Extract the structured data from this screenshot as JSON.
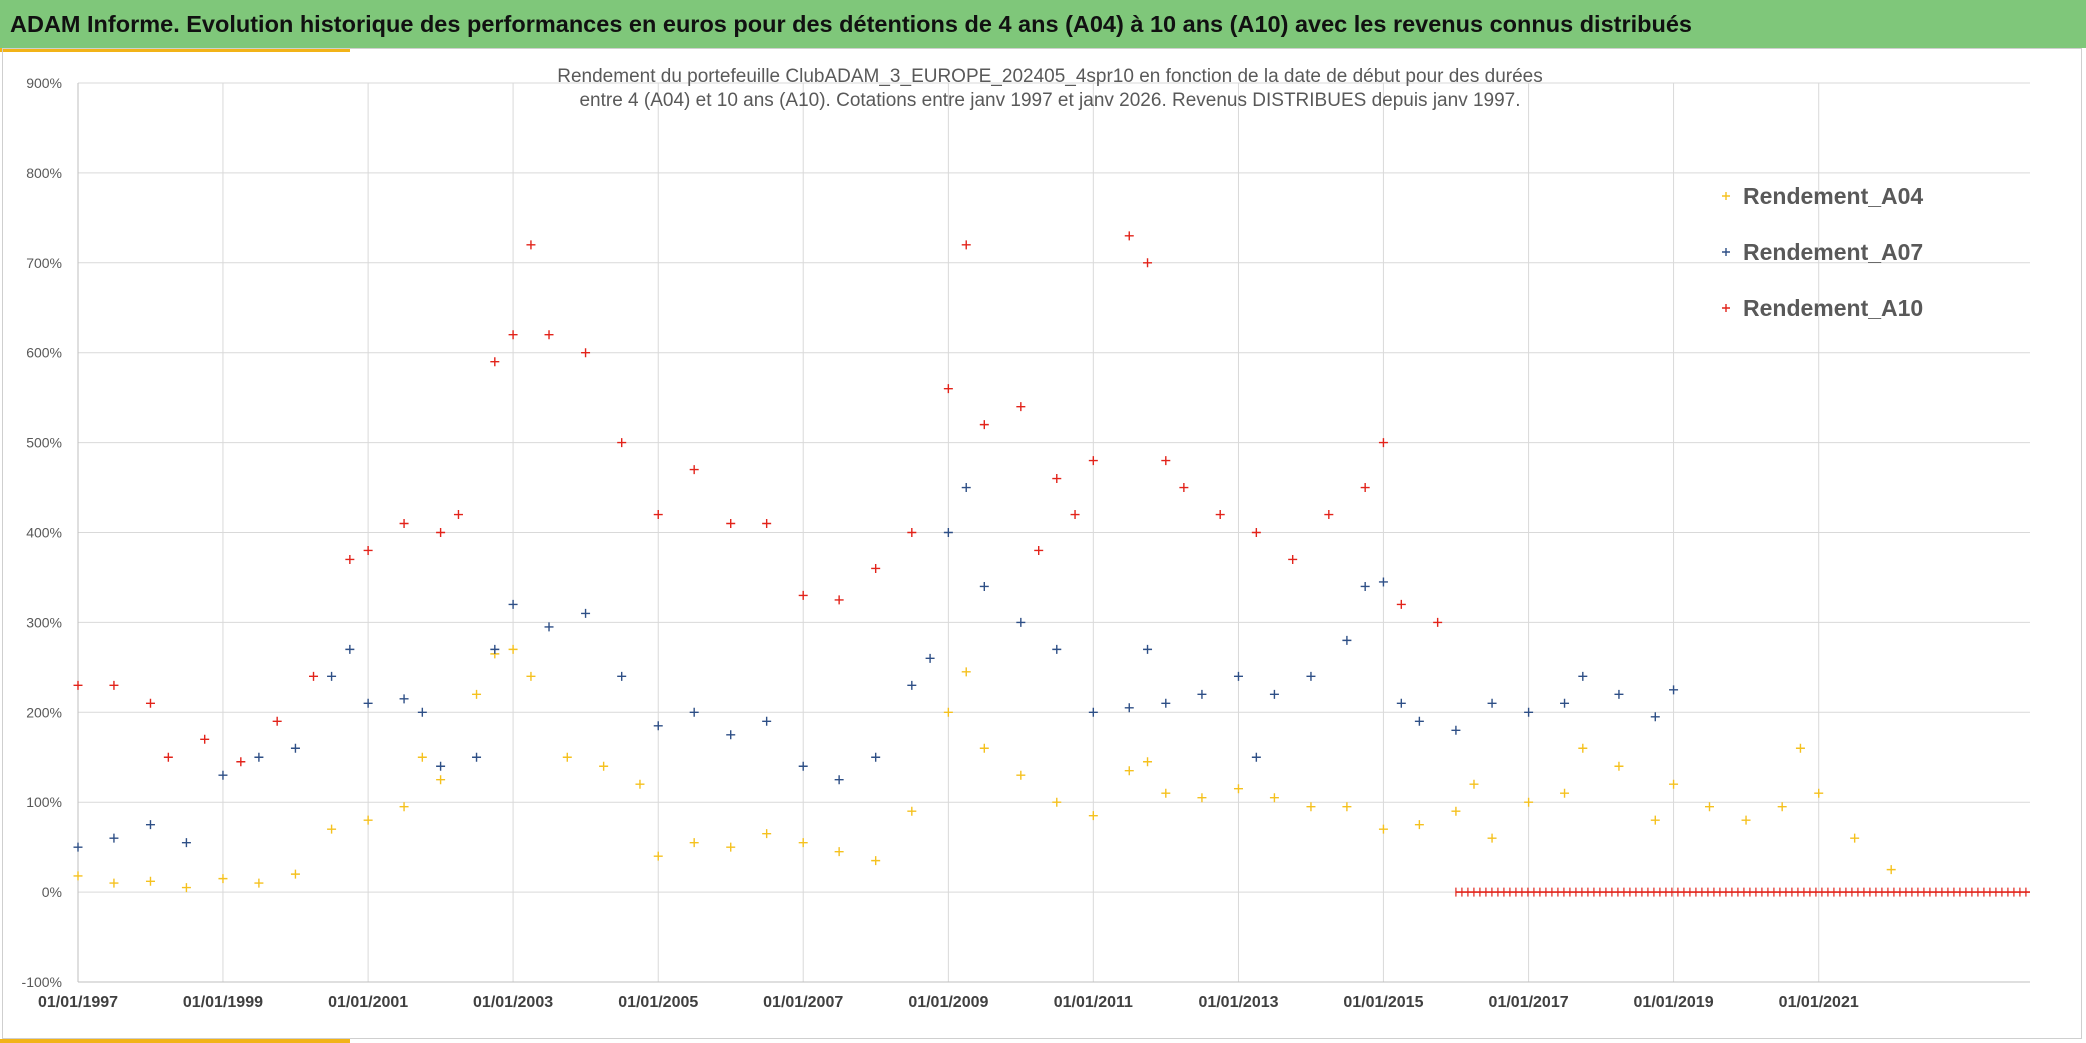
{
  "header": {
    "title": "ADAM Informe. Evolution historique des performances en euros pour des détentions de 4 ans (A04) à 10 ans (A10) avec les revenus connus distribués"
  },
  "chart_data": {
    "type": "scatter",
    "title_line1": "Rendement du portefeuille ClubADAM_3_EUROPE_202405_4spr10  en fonction de la date de début pour des durées",
    "title_line2": "entre 4 (A04) et 10 ans (A10). Cotations entre janv 1997 et janv 2026. Revenus DISTRIBUES depuis janv 1997.",
    "xlim": [
      "1997-01-01",
      "2023-12-01"
    ],
    "ylim": [
      -100,
      900
    ],
    "y_ticks": [
      -100,
      0,
      100,
      200,
      300,
      400,
      500,
      600,
      700,
      800,
      900
    ],
    "y_tick_labels": [
      "-100%",
      "0%",
      "100%",
      "200%",
      "300%",
      "400%",
      "500%",
      "600%",
      "700%",
      "800%",
      "900%"
    ],
    "x_ticks": [
      "1997-01-01",
      "1999-01-01",
      "2001-01-01",
      "2003-01-01",
      "2005-01-01",
      "2007-01-01",
      "2009-01-01",
      "2011-01-01",
      "2013-01-01",
      "2015-01-01",
      "2017-01-01",
      "2019-01-01",
      "2021-01-01"
    ],
    "x_tick_labels": [
      "01/01/1997",
      "01/01/1999",
      "01/01/2001",
      "01/01/2003",
      "01/01/2005",
      "01/01/2007",
      "01/01/2009",
      "01/01/2011",
      "01/01/2013",
      "01/01/2015",
      "01/01/2017",
      "01/01/2019",
      "01/01/2021"
    ],
    "grid": true,
    "legend_position": "top-right",
    "marker": "+",
    "series": [
      {
        "name": "Rendement_A04",
        "color": "#f5c11e",
        "x": [
          "1997-01-01",
          "1997-07-01",
          "1998-01-01",
          "1998-07-01",
          "1999-01-01",
          "1999-07-01",
          "2000-01-01",
          "2000-07-01",
          "2001-01-01",
          "2001-07-01",
          "2001-10-01",
          "2002-01-01",
          "2002-07-01",
          "2002-10-01",
          "2003-01-01",
          "2003-04-01",
          "2003-10-01",
          "2004-04-01",
          "2004-10-01",
          "2005-01-01",
          "2005-07-01",
          "2006-01-01",
          "2006-07-01",
          "2007-01-01",
          "2007-07-01",
          "2008-01-01",
          "2008-07-01",
          "2009-01-01",
          "2009-04-01",
          "2009-07-01",
          "2010-01-01",
          "2010-07-01",
          "2011-01-01",
          "2011-07-01",
          "2011-10-01",
          "2012-01-01",
          "2012-07-01",
          "2013-01-01",
          "2013-07-01",
          "2014-01-01",
          "2014-07-01",
          "2015-01-01",
          "2015-07-01",
          "2016-01-01",
          "2016-04-01",
          "2016-07-01",
          "2017-01-01",
          "2017-07-01",
          "2017-10-01",
          "2018-04-01",
          "2018-10-01",
          "2019-01-01",
          "2019-07-01",
          "2020-01-01",
          "2020-07-01",
          "2020-10-01",
          "2021-01-01",
          "2021-07-01",
          "2022-01-01"
        ],
        "values": [
          18,
          10,
          12,
          5,
          15,
          10,
          20,
          70,
          80,
          95,
          150,
          125,
          220,
          265,
          270,
          240,
          150,
          140,
          120,
          40,
          55,
          50,
          65,
          55,
          45,
          35,
          90,
          200,
          245,
          160,
          130,
          100,
          85,
          135,
          145,
          110,
          105,
          115,
          105,
          95,
          95,
          70,
          75,
          90,
          120,
          60,
          100,
          110,
          160,
          140,
          80,
          120,
          95,
          80,
          95,
          160,
          110,
          60,
          25
        ]
      },
      {
        "name": "Rendement_A07",
        "color": "#2e4f86",
        "x": [
          "1997-01-01",
          "1997-07-01",
          "1998-01-01",
          "1998-07-01",
          "1999-01-01",
          "1999-07-01",
          "2000-01-01",
          "2000-07-01",
          "2000-10-01",
          "2001-01-01",
          "2001-07-01",
          "2001-10-01",
          "2002-01-01",
          "2002-07-01",
          "2002-10-01",
          "2003-01-01",
          "2003-07-01",
          "2004-01-01",
          "2004-07-01",
          "2005-01-01",
          "2005-07-01",
          "2006-01-01",
          "2006-07-01",
          "2007-01-01",
          "2007-07-01",
          "2008-01-01",
          "2008-07-01",
          "2008-10-01",
          "2009-01-01",
          "2009-04-01",
          "2009-07-01",
          "2010-01-01",
          "2010-07-01",
          "2011-01-01",
          "2011-07-01",
          "2011-10-01",
          "2012-01-01",
          "2012-07-01",
          "2013-01-01",
          "2013-04-01",
          "2013-07-01",
          "2014-01-01",
          "2014-07-01",
          "2014-10-01",
          "2015-01-01",
          "2015-04-01",
          "2015-07-01",
          "2016-01-01",
          "2016-07-01",
          "2017-01-01",
          "2017-07-01",
          "2017-10-01",
          "2018-04-01",
          "2018-10-01",
          "2019-01-01"
        ],
        "values": [
          50,
          60,
          75,
          55,
          130,
          150,
          160,
          240,
          270,
          210,
          215,
          200,
          140,
          150,
          270,
          320,
          295,
          310,
          240,
          185,
          200,
          175,
          190,
          140,
          125,
          150,
          230,
          260,
          400,
          450,
          340,
          300,
          270,
          200,
          205,
          270,
          210,
          220,
          240,
          150,
          220,
          240,
          280,
          340,
          345,
          210,
          190,
          180,
          210,
          200,
          210,
          240,
          220,
          195,
          225
        ]
      },
      {
        "name": "Rendement_A10",
        "color": "#e2231a",
        "x": [
          "1997-01-01",
          "1997-07-01",
          "1998-01-01",
          "1998-04-01",
          "1998-10-01",
          "1999-04-01",
          "1999-10-01",
          "2000-04-01",
          "2000-10-01",
          "2001-01-01",
          "2001-07-01",
          "2002-01-01",
          "2002-04-01",
          "2002-10-01",
          "2003-01-01",
          "2003-04-01",
          "2003-07-01",
          "2004-01-01",
          "2004-07-01",
          "2005-01-01",
          "2005-07-01",
          "2006-01-01",
          "2006-07-01",
          "2007-01-01",
          "2007-07-01",
          "2008-01-01",
          "2008-07-01",
          "2009-01-01",
          "2009-04-01",
          "2009-07-01",
          "2010-01-01",
          "2010-04-01",
          "2010-07-01",
          "2010-10-01",
          "2011-01-01",
          "2011-07-01",
          "2011-10-01",
          "2012-01-01",
          "2012-04-01",
          "2012-10-01",
          "2013-04-01",
          "2013-10-01",
          "2014-04-01",
          "2014-10-01",
          "2015-01-01",
          "2015-04-01",
          "2015-10-01"
        ],
        "values": [
          230,
          230,
          210,
          150,
          170,
          145,
          190,
          240,
          370,
          380,
          410,
          400,
          420,
          590,
          620,
          720,
          620,
          600,
          500,
          420,
          470,
          410,
          410,
          330,
          325,
          360,
          400,
          560,
          720,
          520,
          540,
          380,
          460,
          420,
          480,
          730,
          700,
          480,
          450,
          420,
          400,
          370,
          420,
          450,
          500,
          320,
          300
        ]
      }
    ],
    "zero_line": {
      "x_start": "2016-01-01",
      "x_end": "2023-12-01",
      "value": 0,
      "color": "#e2231a"
    }
  }
}
